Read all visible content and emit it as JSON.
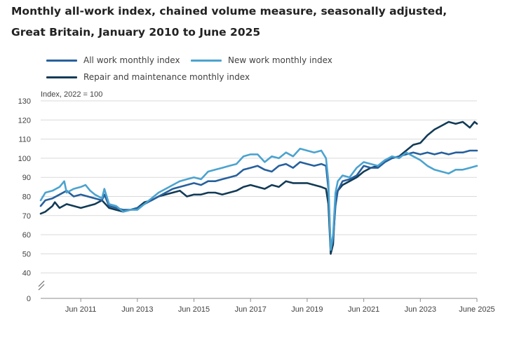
{
  "title_line_1": "Monthly all-work index, chained volume measure, seasonally adjusted,",
  "title_line_2": "Great Britain, January 2010 to June 2025",
  "chart_data": {
    "type": "line",
    "y_unit_label": "Index, 2022 = 100",
    "x_tick_labels": [
      "Jun 2011",
      "Jun 2013",
      "Jun 2015",
      "Jun 2017",
      "Jun 2019",
      "Jun 2021",
      "Jun 2023",
      "June 2025"
    ],
    "x_tick_dates": [
      "2011-06",
      "2013-06",
      "2015-06",
      "2017-06",
      "2019-06",
      "2021-06",
      "2023-06",
      "2025-06"
    ],
    "y_ticks": [
      40,
      50,
      60,
      70,
      80,
      90,
      100,
      110,
      120,
      130
    ],
    "y_zero_label": "0",
    "y_axis_break": true,
    "ylim": [
      35,
      130
    ],
    "xlim": [
      "2010-01",
      "2025-06"
    ],
    "grid": true,
    "legend_position": "top-left",
    "series": [
      {
        "name": "All work monthly index",
        "color": "#27609d",
        "points": [
          [
            "2010-01",
            75
          ],
          [
            "2010-03",
            78
          ],
          [
            "2010-06",
            79
          ],
          [
            "2010-09",
            81
          ],
          [
            "2010-12",
            83
          ],
          [
            "2011-03",
            80
          ],
          [
            "2011-06",
            81
          ],
          [
            "2011-09",
            80
          ],
          [
            "2011-12",
            79
          ],
          [
            "2012-03",
            78
          ],
          [
            "2012-04",
            81
          ],
          [
            "2012-06",
            75
          ],
          [
            "2012-09",
            74
          ],
          [
            "2012-12",
            73
          ],
          [
            "2013-03",
            73
          ],
          [
            "2013-06",
            74
          ],
          [
            "2013-09",
            76
          ],
          [
            "2013-12",
            78
          ],
          [
            "2014-03",
            80
          ],
          [
            "2014-06",
            82
          ],
          [
            "2014-09",
            84
          ],
          [
            "2014-12",
            85
          ],
          [
            "2015-03",
            86
          ],
          [
            "2015-06",
            87
          ],
          [
            "2015-09",
            86
          ],
          [
            "2015-12",
            88
          ],
          [
            "2016-03",
            88
          ],
          [
            "2016-06",
            89
          ],
          [
            "2016-09",
            90
          ],
          [
            "2016-12",
            91
          ],
          [
            "2017-03",
            94
          ],
          [
            "2017-06",
            95
          ],
          [
            "2017-09",
            96
          ],
          [
            "2017-12",
            94
          ],
          [
            "2018-03",
            93
          ],
          [
            "2018-06",
            96
          ],
          [
            "2018-09",
            97
          ],
          [
            "2018-12",
            95
          ],
          [
            "2019-03",
            98
          ],
          [
            "2019-06",
            97
          ],
          [
            "2019-09",
            96
          ],
          [
            "2019-12",
            97
          ],
          [
            "2020-02",
            96
          ],
          [
            "2020-03",
            84
          ],
          [
            "2020-04",
            52
          ],
          [
            "2020-05",
            58
          ],
          [
            "2020-06",
            75
          ],
          [
            "2020-07",
            83
          ],
          [
            "2020-09",
            88
          ],
          [
            "2020-12",
            89
          ],
          [
            "2021-03",
            91
          ],
          [
            "2021-06",
            96
          ],
          [
            "2021-09",
            95
          ],
          [
            "2021-12",
            95
          ],
          [
            "2022-03",
            98
          ],
          [
            "2022-06",
            100
          ],
          [
            "2022-09",
            101
          ],
          [
            "2022-12",
            102
          ],
          [
            "2023-03",
            103
          ],
          [
            "2023-06",
            102
          ],
          [
            "2023-09",
            103
          ],
          [
            "2023-12",
            102
          ],
          [
            "2024-03",
            103
          ],
          [
            "2024-06",
            102
          ],
          [
            "2024-09",
            103
          ],
          [
            "2024-12",
            103
          ],
          [
            "2025-03",
            104
          ],
          [
            "2025-06",
            104
          ]
        ]
      },
      {
        "name": "New work monthly index",
        "color": "#4ba3cf",
        "points": [
          [
            "2010-01",
            78
          ],
          [
            "2010-03",
            82
          ],
          [
            "2010-06",
            83
          ],
          [
            "2010-09",
            85
          ],
          [
            "2010-11",
            88
          ],
          [
            "2010-12",
            82
          ],
          [
            "2011-03",
            84
          ],
          [
            "2011-06",
            85
          ],
          [
            "2011-08",
            86
          ],
          [
            "2011-10",
            83
          ],
          [
            "2011-12",
            81
          ],
          [
            "2012-03",
            79
          ],
          [
            "2012-04",
            84
          ],
          [
            "2012-06",
            76
          ],
          [
            "2012-09",
            75
          ],
          [
            "2012-12",
            72
          ],
          [
            "2013-03",
            73
          ],
          [
            "2013-06",
            73
          ],
          [
            "2013-09",
            76
          ],
          [
            "2013-12",
            79
          ],
          [
            "2014-03",
            82
          ],
          [
            "2014-06",
            84
          ],
          [
            "2014-09",
            86
          ],
          [
            "2014-12",
            88
          ],
          [
            "2015-03",
            89
          ],
          [
            "2015-06",
            90
          ],
          [
            "2015-09",
            89
          ],
          [
            "2015-12",
            93
          ],
          [
            "2016-03",
            94
          ],
          [
            "2016-06",
            95
          ],
          [
            "2016-09",
            96
          ],
          [
            "2016-12",
            97
          ],
          [
            "2017-03",
            101
          ],
          [
            "2017-06",
            102
          ],
          [
            "2017-09",
            102
          ],
          [
            "2017-12",
            98
          ],
          [
            "2018-03",
            101
          ],
          [
            "2018-06",
            100
          ],
          [
            "2018-09",
            103
          ],
          [
            "2018-12",
            101
          ],
          [
            "2019-03",
            105
          ],
          [
            "2019-06",
            104
          ],
          [
            "2019-09",
            103
          ],
          [
            "2019-12",
            104
          ],
          [
            "2020-02",
            100
          ],
          [
            "2020-03",
            88
          ],
          [
            "2020-04",
            52
          ],
          [
            "2020-05",
            60
          ],
          [
            "2020-06",
            82
          ],
          [
            "2020-07",
            88
          ],
          [
            "2020-09",
            91
          ],
          [
            "2020-12",
            90
          ],
          [
            "2021-03",
            95
          ],
          [
            "2021-06",
            98
          ],
          [
            "2021-09",
            97
          ],
          [
            "2021-12",
            96
          ],
          [
            "2022-03",
            99
          ],
          [
            "2022-06",
            101
          ],
          [
            "2022-09",
            100
          ],
          [
            "2022-12",
            103
          ],
          [
            "2023-03",
            101
          ],
          [
            "2023-06",
            99
          ],
          [
            "2023-09",
            96
          ],
          [
            "2023-12",
            94
          ],
          [
            "2024-03",
            93
          ],
          [
            "2024-06",
            92
          ],
          [
            "2024-09",
            94
          ],
          [
            "2024-12",
            94
          ],
          [
            "2025-03",
            95
          ],
          [
            "2025-06",
            96
          ]
        ]
      },
      {
        "name": "Repair and maintenance monthly index",
        "color": "#123b56",
        "points": [
          [
            "2010-01",
            71
          ],
          [
            "2010-03",
            72
          ],
          [
            "2010-06",
            75
          ],
          [
            "2010-07",
            77
          ],
          [
            "2010-09",
            74
          ],
          [
            "2010-12",
            76
          ],
          [
            "2011-03",
            75
          ],
          [
            "2011-06",
            74
          ],
          [
            "2011-09",
            75
          ],
          [
            "2011-12",
            76
          ],
          [
            "2012-03",
            78
          ],
          [
            "2012-06",
            74
          ],
          [
            "2012-09",
            73
          ],
          [
            "2012-12",
            72
          ],
          [
            "2013-03",
            73
          ],
          [
            "2013-06",
            74
          ],
          [
            "2013-09",
            77
          ],
          [
            "2013-12",
            78
          ],
          [
            "2014-03",
            80
          ],
          [
            "2014-06",
            81
          ],
          [
            "2014-09",
            82
          ],
          [
            "2014-12",
            83
          ],
          [
            "2015-03",
            80
          ],
          [
            "2015-06",
            81
          ],
          [
            "2015-09",
            81
          ],
          [
            "2015-12",
            82
          ],
          [
            "2016-03",
            82
          ],
          [
            "2016-06",
            81
          ],
          [
            "2016-09",
            82
          ],
          [
            "2016-12",
            83
          ],
          [
            "2017-03",
            85
          ],
          [
            "2017-06",
            86
          ],
          [
            "2017-09",
            85
          ],
          [
            "2017-12",
            84
          ],
          [
            "2018-03",
            86
          ],
          [
            "2018-06",
            85
          ],
          [
            "2018-09",
            88
          ],
          [
            "2018-12",
            87
          ],
          [
            "2019-03",
            87
          ],
          [
            "2019-06",
            87
          ],
          [
            "2019-09",
            86
          ],
          [
            "2019-12",
            85
          ],
          [
            "2020-02",
            84
          ],
          [
            "2020-03",
            76
          ],
          [
            "2020-04",
            50
          ],
          [
            "2020-05",
            55
          ],
          [
            "2020-06",
            78
          ],
          [
            "2020-07",
            83
          ],
          [
            "2020-09",
            86
          ],
          [
            "2020-12",
            88
          ],
          [
            "2021-03",
            90
          ],
          [
            "2021-06",
            93
          ],
          [
            "2021-09",
            95
          ],
          [
            "2021-12",
            96
          ],
          [
            "2022-03",
            99
          ],
          [
            "2022-06",
            100
          ],
          [
            "2022-09",
            101
          ],
          [
            "2022-12",
            104
          ],
          [
            "2023-03",
            107
          ],
          [
            "2023-06",
            108
          ],
          [
            "2023-09",
            112
          ],
          [
            "2023-12",
            115
          ],
          [
            "2024-03",
            117
          ],
          [
            "2024-06",
            119
          ],
          [
            "2024-09",
            118
          ],
          [
            "2024-12",
            119
          ],
          [
            "2025-01",
            118
          ],
          [
            "2025-03",
            116
          ],
          [
            "2025-05",
            119
          ],
          [
            "2025-06",
            118
          ]
        ]
      }
    ]
  }
}
